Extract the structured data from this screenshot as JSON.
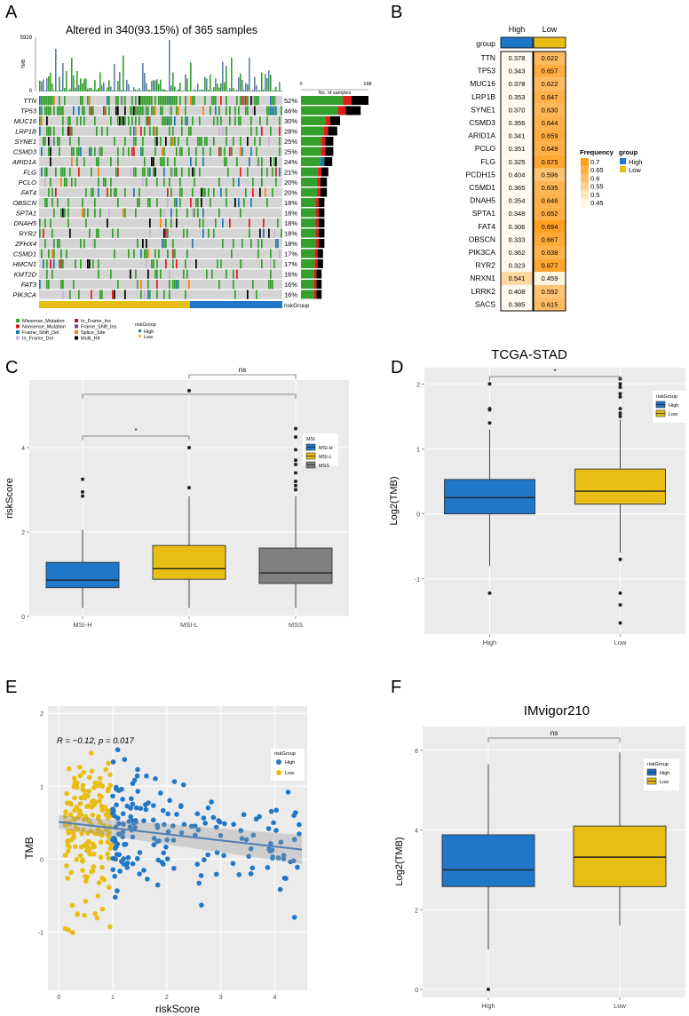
{
  "panel_letters": {
    "a": "A",
    "b": "B",
    "c": "C",
    "d": "D",
    "e": "E",
    "f": "F"
  },
  "colors": {
    "high": "#1f77c9",
    "low": "#e8bd14",
    "panel_bg": "#ebebeb",
    "grid": "#ffffff",
    "mss": "#808080"
  },
  "chart_data": [
    {
      "panel": "A",
      "type": "heatmap",
      "title": "Altered in 340(93.15%) of 365 samples",
      "tmb_label": "TMB",
      "tmb_max_label": "5929",
      "tmb_min_label": "0",
      "bar_axis_min": "0",
      "bar_axis_max": "188",
      "bar_axis_label": "No. of samples",
      "genes": [
        "TTN",
        "TP53",
        "MUC16",
        "LRP1B",
        "SYNE1",
        "CSMD3",
        "ARID1A",
        "FLG",
        "PCLO",
        "FAT4",
        "OBSCN",
        "SPTA1",
        "DNAH5",
        "RYR2",
        "ZFHX4",
        "CSMD1",
        "HMCN1",
        "KMT2D",
        "FAT3",
        "PIK3CA"
      ],
      "percents": [
        "52%",
        "46%",
        "30%",
        "28%",
        "25%",
        "25%",
        "24%",
        "21%",
        "20%",
        "20%",
        "18%",
        "18%",
        "18%",
        "18%",
        "18%",
        "17%",
        "17%",
        "16%",
        "16%",
        "16%"
      ],
      "sample_counts": [
        190,
        168,
        110,
        102,
        91,
        91,
        88,
        77,
        73,
        73,
        66,
        66,
        66,
        66,
        66,
        62,
        62,
        58,
        58,
        58
      ],
      "riskgroup_label": "riskGroup",
      "riskgroup_split": 0.62,
      "legend_items": [
        "Missense_Mutation",
        "Nonsense_Mutation",
        "Frame_Shift_Del",
        "In_Frame_Del",
        "In_Frame_Ins",
        "Frame_Shift_Ins",
        "Splice_Site",
        "Multi_Hit"
      ],
      "legend_colors": [
        "#33a02c",
        "#e31a1c",
        "#1f78b4",
        "#cab2d6",
        "#b2182b",
        "#6a3d9a",
        "#ff7f00",
        "#000000"
      ],
      "legend_group_title": "riskGroup",
      "legend_group_items": [
        "High",
        "Low"
      ]
    },
    {
      "panel": "B",
      "type": "heatmap",
      "col_headers": [
        "High",
        "Low"
      ],
      "group_label": "group",
      "genes": [
        "TTN",
        "TP53",
        "MUC16",
        "LRP1B",
        "SYNE1",
        "CSMD3",
        "ARID1A",
        "PCLO",
        "FLG",
        "PCDH15",
        "CSMD1",
        "DNAH5",
        "SPTA1",
        "FAT4",
        "OBSCN",
        "PIK3CA",
        "RYR2",
        "NRXN1",
        "LRRK2",
        "SACS"
      ],
      "high": [
        "0.378",
        "0.343",
        "0.378",
        "0.353",
        "0.370",
        "0.356",
        "0.341",
        "0.351",
        "0.325",
        "0.404",
        "0.365",
        "0.354",
        "0.348",
        "0.306",
        "0.333",
        "0.362",
        "0.323",
        "0.541",
        "0.408",
        "0.385"
      ],
      "low": [
        "0.622",
        "0.657",
        "0.622",
        "0.647",
        "0.630",
        "0.644",
        "0.659",
        "0.649",
        "0.675",
        "0.596",
        "0.635",
        "0.646",
        "0.652",
        "0.694",
        "0.667",
        "0.638",
        "0.677",
        "0.459",
        "0.592",
        "0.615"
      ],
      "legend_title": "Frequency",
      "legend_ticks": [
        "0.7",
        "0.65",
        "0.6",
        "0.55",
        "0.5",
        "0.45"
      ],
      "group_legend_title": "group",
      "group_legend_items": [
        "High",
        "Low"
      ]
    },
    {
      "panel": "C",
      "type": "box",
      "title": "",
      "xlabel": "",
      "ylabel": "riskScore",
      "categories": [
        "MSI-H",
        "MSI-L",
        "MSS"
      ],
      "boxes": [
        {
          "q1": 0.68,
          "median": 0.86,
          "q3": 1.28,
          "whisker_low": 0.2,
          "whisker_high": 2.05,
          "outliers": [
            2.85,
            2.95,
            3.25
          ]
        },
        {
          "q1": 0.88,
          "median": 1.13,
          "q3": 1.68,
          "whisker_low": 0.2,
          "whisker_high": 2.85,
          "outliers": [
            3.05,
            4.0,
            5.35
          ]
        },
        {
          "q1": 0.78,
          "median": 1.03,
          "q3": 1.62,
          "whisker_low": 0.2,
          "whisker_high": 2.85,
          "outliers": [
            3.0,
            3.1,
            3.2,
            3.4,
            3.6,
            3.7,
            3.95,
            4.25,
            4.45
          ]
        }
      ],
      "ylim": [
        0,
        5.6
      ],
      "yticks": [
        "0",
        "2",
        "4"
      ],
      "sig_labels": [
        "*",
        "ns"
      ],
      "legend_title": "MSI",
      "legend_items": [
        "MSI-H",
        "MSI-L",
        "MSS"
      ]
    },
    {
      "panel": "D",
      "type": "box",
      "title": "TCGA-STAD",
      "xlabel": "",
      "ylabel": "Log2(TMB)",
      "categories": [
        "High",
        "Low"
      ],
      "boxes": [
        {
          "q1": 0.0,
          "median": 0.25,
          "q3": 0.53,
          "whisker_low": -0.8,
          "whisker_high": 1.3,
          "outliers": [
            1.4,
            1.6,
            1.62,
            2.0,
            -1.22
          ]
        },
        {
          "q1": 0.15,
          "median": 0.35,
          "q3": 0.69,
          "whisker_low": -0.6,
          "whisker_high": 1.45,
          "outliers": [
            1.5,
            1.55,
            1.62,
            1.8,
            1.85,
            1.95,
            2.0,
            2.08,
            -0.7,
            -1.22,
            -1.4,
            -1.68
          ]
        }
      ],
      "ylim": [
        -1.85,
        2.25
      ],
      "yticks": [
        "-1",
        "0",
        "1",
        "2"
      ],
      "sig_label": "*",
      "legend_title": "riskGroup",
      "legend_items": [
        "High",
        "Low"
      ]
    },
    {
      "panel": "E",
      "type": "scatter",
      "title": "",
      "xlabel": "riskScore",
      "ylabel": "TMB",
      "annotation": "R = −0.12, p = 0.017",
      "xlim": [
        -0.2,
        4.6
      ],
      "ylim": [
        -1.8,
        2.1
      ],
      "xticks": [
        "0",
        "1",
        "2",
        "3",
        "4"
      ],
      "yticks": [
        "-1",
        "0",
        "1",
        "2"
      ],
      "regression": {
        "x0": 0.0,
        "y0": 0.51,
        "x1": 4.5,
        "y1": 0.13
      },
      "legend_title": "riskGroup",
      "legend_items": [
        "High",
        "Low"
      ],
      "threshold": 1.0,
      "n_points_low": 182,
      "n_points_high": 183
    },
    {
      "panel": "F",
      "type": "box",
      "title": "IMvigor210",
      "xlabel": "",
      "ylabel": "Log2(TMB)",
      "categories": [
        "High",
        "Low"
      ],
      "boxes": [
        {
          "q1": 2.58,
          "median": 3.0,
          "q3": 3.88,
          "whisker_low": 1.0,
          "whisker_high": 5.65,
          "outliers": [
            0.0
          ]
        },
        {
          "q1": 2.58,
          "median": 3.32,
          "q3": 4.1,
          "whisker_low": 1.6,
          "whisker_high": 5.95,
          "outliers": []
        }
      ],
      "ylim": [
        -0.2,
        6.6
      ],
      "yticks": [
        "0",
        "2",
        "4",
        "6"
      ],
      "sig_label": "ns",
      "legend_title": "riskGroup",
      "legend_items": [
        "High",
        "Low"
      ]
    }
  ]
}
